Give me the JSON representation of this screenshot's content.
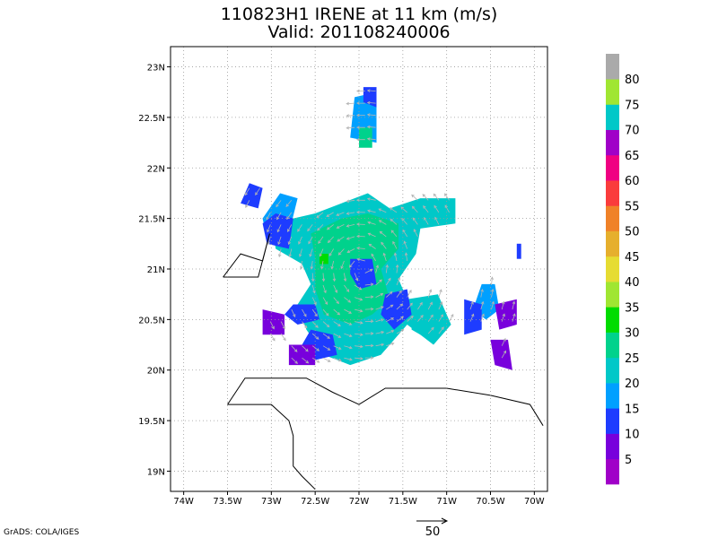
{
  "chart_data": {
    "type": "heatmap",
    "title": "110823H1 IRENE at 11 km (m/s)",
    "subtitle": "Valid: 201108240006",
    "xlim": [
      -74.15,
      -69.85
    ],
    "ylim": [
      18.8,
      23.2
    ],
    "x_ticks": [
      {
        "value": -74,
        "label": "74W"
      },
      {
        "value": -73.5,
        "label": "73.5W"
      },
      {
        "value": -73,
        "label": "73W"
      },
      {
        "value": -72.5,
        "label": "72.5W"
      },
      {
        "value": -72,
        "label": "72W"
      },
      {
        "value": -71.5,
        "label": "71.5W"
      },
      {
        "value": -71,
        "label": "71W"
      },
      {
        "value": -70.5,
        "label": "70.5W"
      },
      {
        "value": -70,
        "label": "70W"
      }
    ],
    "y_ticks": [
      {
        "value": 19,
        "label": "19N"
      },
      {
        "value": 19.5,
        "label": "19.5N"
      },
      {
        "value": 20,
        "label": "20N"
      },
      {
        "value": 20.5,
        "label": "20.5N"
      },
      {
        "value": 21,
        "label": "21N"
      },
      {
        "value": 21.5,
        "label": "21.5N"
      },
      {
        "value": 22,
        "label": "22N"
      },
      {
        "value": 22.5,
        "label": "22.5N"
      },
      {
        "value": 23,
        "label": "23N"
      }
    ],
    "grid": true,
    "colorbar": {
      "placement": "right",
      "colors": [
        "#a000c8",
        "#7800dc",
        "#1e3cff",
        "#00a0ff",
        "#00c8c8",
        "#00d28c",
        "#00dc00",
        "#a0e632",
        "#e6dc32",
        "#e6af2d",
        "#f08228",
        "#fa3c3c",
        "#f00082",
        "#a000c8",
        "#00c8c8",
        "#a0e632",
        "#aaaaaa"
      ],
      "labels": [
        "5",
        "10",
        "15",
        "20",
        "25",
        "30",
        "35",
        "40",
        "45",
        "50",
        "55",
        "60",
        "65",
        "70",
        "75",
        "80"
      ]
    },
    "wind_regions": [
      {
        "speed": 22,
        "polygon": [
          [
            -73.0,
            21.45
          ],
          [
            -72.5,
            21.55
          ],
          [
            -72.2,
            21.65
          ],
          [
            -71.9,
            21.75
          ],
          [
            -71.65,
            21.6
          ],
          [
            -71.3,
            21.7
          ],
          [
            -70.9,
            21.7
          ],
          [
            -70.9,
            21.45
          ],
          [
            -71.3,
            21.4
          ],
          [
            -71.35,
            21.15
          ],
          [
            -71.55,
            20.9
          ],
          [
            -71.45,
            20.7
          ],
          [
            -71.1,
            20.75
          ],
          [
            -70.95,
            20.45
          ],
          [
            -71.15,
            20.25
          ],
          [
            -71.45,
            20.45
          ],
          [
            -71.6,
            20.3
          ],
          [
            -71.75,
            20.15
          ],
          [
            -72.1,
            20.05
          ],
          [
            -72.4,
            20.15
          ],
          [
            -72.6,
            20.4
          ],
          [
            -72.7,
            20.65
          ],
          [
            -72.55,
            20.85
          ],
          [
            -72.65,
            21.05
          ],
          [
            -72.95,
            21.2
          ]
        ]
      },
      {
        "speed": 26,
        "polygon": [
          [
            -72.55,
            21.35
          ],
          [
            -72.2,
            21.5
          ],
          [
            -71.9,
            21.55
          ],
          [
            -71.55,
            21.45
          ],
          [
            -71.55,
            21.2
          ],
          [
            -71.75,
            21.0
          ],
          [
            -71.65,
            20.7
          ],
          [
            -71.85,
            20.55
          ],
          [
            -72.1,
            20.45
          ],
          [
            -72.4,
            20.55
          ],
          [
            -72.5,
            20.8
          ],
          [
            -72.5,
            21.1
          ]
        ]
      },
      {
        "speed": 24,
        "polygon": [
          [
            -71.4,
            20.7
          ],
          [
            -71.1,
            20.7
          ],
          [
            -71.0,
            20.45
          ],
          [
            -71.2,
            20.3
          ],
          [
            -71.4,
            20.4
          ]
        ]
      },
      {
        "speed": 32,
        "polygon": [
          [
            -72.45,
            21.15
          ],
          [
            -72.35,
            21.15
          ],
          [
            -72.35,
            21.05
          ],
          [
            -72.45,
            21.05
          ]
        ]
      },
      {
        "speed": 13,
        "polygon": [
          [
            -72.1,
            21.1
          ],
          [
            -71.85,
            21.1
          ],
          [
            -71.8,
            20.85
          ],
          [
            -72.0,
            20.8
          ],
          [
            -72.1,
            20.95
          ]
        ]
      },
      {
        "speed": 13,
        "polygon": [
          [
            -71.7,
            20.75
          ],
          [
            -71.45,
            20.8
          ],
          [
            -71.4,
            20.55
          ],
          [
            -71.6,
            20.4
          ],
          [
            -71.75,
            20.55
          ]
        ]
      },
      {
        "speed": 18,
        "polygon": [
          [
            -72.9,
            21.75
          ],
          [
            -72.7,
            21.7
          ],
          [
            -72.8,
            21.35
          ],
          [
            -73.05,
            21.3
          ],
          [
            -73.1,
            21.5
          ]
        ]
      },
      {
        "speed": 13,
        "polygon": [
          [
            -72.95,
            21.55
          ],
          [
            -72.75,
            21.5
          ],
          [
            -72.8,
            21.2
          ],
          [
            -73.05,
            21.25
          ],
          [
            -73.1,
            21.45
          ]
        ]
      },
      {
        "speed": 13,
        "polygon": [
          [
            -72.75,
            20.65
          ],
          [
            -72.5,
            20.65
          ],
          [
            -72.45,
            20.5
          ],
          [
            -72.7,
            20.45
          ],
          [
            -72.85,
            20.55
          ]
        ]
      },
      {
        "speed": 13,
        "polygon": [
          [
            -72.55,
            20.4
          ],
          [
            -72.3,
            20.35
          ],
          [
            -72.25,
            20.15
          ],
          [
            -72.5,
            20.1
          ],
          [
            -72.65,
            20.25
          ]
        ]
      },
      {
        "speed": 8,
        "polygon": [
          [
            -73.1,
            20.6
          ],
          [
            -72.85,
            20.55
          ],
          [
            -72.85,
            20.35
          ],
          [
            -73.1,
            20.35
          ]
        ]
      },
      {
        "speed": 8,
        "polygon": [
          [
            -72.8,
            20.25
          ],
          [
            -72.5,
            20.25
          ],
          [
            -72.5,
            20.05
          ],
          [
            -72.8,
            20.05
          ]
        ]
      },
      {
        "speed": 18,
        "polygon": [
          [
            -72.05,
            22.7
          ],
          [
            -71.8,
            22.75
          ],
          [
            -71.8,
            22.25
          ],
          [
            -72.1,
            22.3
          ]
        ]
      },
      {
        "speed": 27,
        "polygon": [
          [
            -72.0,
            22.4
          ],
          [
            -71.85,
            22.4
          ],
          [
            -71.85,
            22.2
          ],
          [
            -72.0,
            22.2
          ]
        ]
      },
      {
        "speed": 13,
        "polygon": [
          [
            -71.95,
            22.8
          ],
          [
            -71.8,
            22.8
          ],
          [
            -71.8,
            22.6
          ],
          [
            -71.95,
            22.65
          ]
        ]
      },
      {
        "speed": 12,
        "polygon": [
          [
            -73.25,
            21.85
          ],
          [
            -73.1,
            21.8
          ],
          [
            -73.15,
            21.6
          ],
          [
            -73.35,
            21.65
          ]
        ]
      },
      {
        "speed": 18,
        "polygon": [
          [
            -70.6,
            20.85
          ],
          [
            -70.45,
            20.85
          ],
          [
            -70.4,
            20.6
          ],
          [
            -70.55,
            20.5
          ],
          [
            -70.7,
            20.6
          ]
        ]
      },
      {
        "speed": 13,
        "polygon": [
          [
            -70.8,
            20.7
          ],
          [
            -70.6,
            20.65
          ],
          [
            -70.6,
            20.4
          ],
          [
            -70.8,
            20.35
          ]
        ]
      },
      {
        "speed": 8,
        "polygon": [
          [
            -70.45,
            20.65
          ],
          [
            -70.2,
            20.7
          ],
          [
            -70.2,
            20.45
          ],
          [
            -70.4,
            20.4
          ]
        ]
      },
      {
        "speed": 8,
        "polygon": [
          [
            -70.5,
            20.3
          ],
          [
            -70.3,
            20.3
          ],
          [
            -70.25,
            20.0
          ],
          [
            -70.45,
            20.05
          ]
        ]
      },
      {
        "speed": 10,
        "polygon": [
          [
            -70.2,
            21.25
          ],
          [
            -70.15,
            21.25
          ],
          [
            -70.15,
            21.1
          ],
          [
            -70.2,
            21.1
          ]
        ]
      }
    ],
    "coastlines": [
      [
        [
          -73.55,
          20.92
        ],
        [
          -73.35,
          21.15
        ],
        [
          -73.1,
          21.08
        ],
        [
          -73.02,
          21.35
        ],
        [
          -73.15,
          20.92
        ],
        [
          -73.55,
          20.92
        ]
      ],
      [
        [
          -73.5,
          19.66
        ],
        [
          -73.3,
          19.92
        ],
        [
          -72.6,
          19.92
        ],
        [
          -72.3,
          19.78
        ],
        [
          -72.0,
          19.66
        ],
        [
          -71.7,
          19.82
        ],
        [
          -71.0,
          19.82
        ],
        [
          -70.5,
          19.75
        ],
        [
          -70.05,
          19.66
        ],
        [
          -69.9,
          19.45
        ]
      ],
      [
        [
          -73.5,
          19.66
        ],
        [
          -73.0,
          19.66
        ],
        [
          -72.8,
          19.5
        ],
        [
          -72.75,
          19.35
        ],
        [
          -72.75,
          19.05
        ],
        [
          -72.65,
          18.95
        ],
        [
          -72.5,
          18.82
        ]
      ]
    ],
    "vector_reference": {
      "value": 50,
      "label": "50"
    }
  },
  "credit": "GrADS: COLA/IGES"
}
